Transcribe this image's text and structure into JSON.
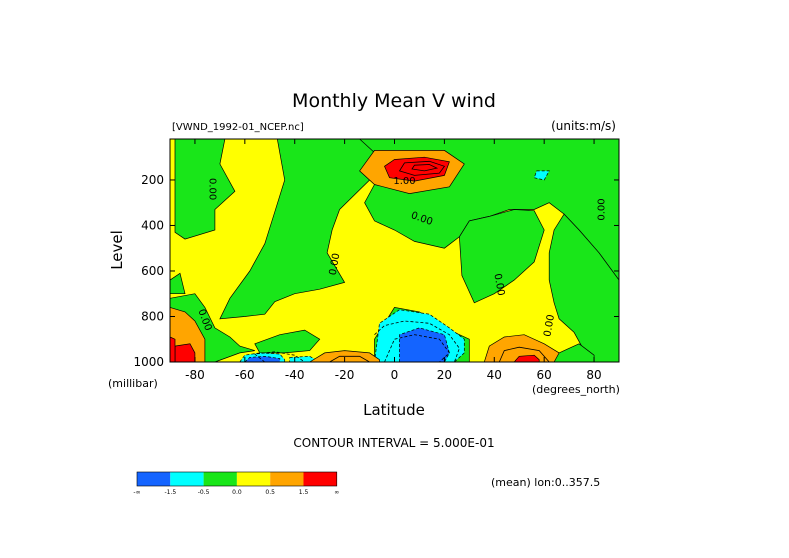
{
  "chart_data": {
    "type": "contour",
    "title": "Monthly Mean V wind",
    "dataset_label": "[VWND_1992-01_NCEP.nc]",
    "units_label": "(units:m/s)",
    "xlabel": "Latitude",
    "x_units": "(degrees_north)",
    "ylabel": "Level",
    "y_units": "(millibar)",
    "xlim": [
      -90,
      90
    ],
    "ylim": [
      1000,
      20
    ],
    "x_ticks": [
      -80,
      -60,
      -40,
      -20,
      0,
      20,
      40,
      60,
      80
    ],
    "y_ticks": [
      200,
      400,
      600,
      800,
      1000
    ],
    "contour_interval_text": "CONTOUR INTERVAL = 5.000E-01",
    "mean_note": "(mean) lon:0..357.5",
    "colorbar": {
      "colors": [
        "#1464ff",
        "#00ffff",
        "#19e619",
        "#ffff00",
        "#ffa500",
        "#ff0000"
      ],
      "labels": [
        "-∞",
        "-1.5",
        "-0.5",
        "0.0",
        "0.5",
        "1.5",
        "∞"
      ]
    },
    "contour_labels": [
      {
        "text": "0.00",
        "lat": -73,
        "lev": 240,
        "rot": 90
      },
      {
        "text": "1.00",
        "lat": 4,
        "lev": 205,
        "rot": 0
      },
      {
        "text": "0.00",
        "lat": 11,
        "lev": 370,
        "rot": 20
      },
      {
        "text": "0.00",
        "lat": -24,
        "lev": 570,
        "rot": -80
      },
      {
        "text": "0.00",
        "lat": 42,
        "lev": 660,
        "rot": 80
      },
      {
        "text": "0.00",
        "lat": -76,
        "lev": 815,
        "rot": 70
      },
      {
        "text": "0.00",
        "lat": 62,
        "lev": 840,
        "rot": -80
      },
      {
        "text": "0.00",
        "lat": 83,
        "lev": 330,
        "rot": -90
      }
    ],
    "regions": {
      "green": [
        [
          [
            -76,
            20
          ],
          [
            -68,
            20
          ],
          [
            -70,
            130
          ],
          [
            -64,
            250
          ],
          [
            -72,
            330
          ],
          [
            -72,
            420
          ],
          [
            -84,
            460
          ],
          [
            -88,
            430
          ],
          [
            -88,
            20
          ]
        ],
        [
          [
            -47,
            20
          ],
          [
            -14,
            20
          ],
          [
            -4,
            100
          ],
          [
            -10,
            200
          ],
          [
            -22,
            330
          ],
          [
            -25,
            420
          ],
          [
            -27,
            520
          ],
          [
            -20,
            650
          ],
          [
            -30,
            680
          ],
          [
            -40,
            700
          ],
          [
            -48,
            735
          ],
          [
            -52,
            790
          ],
          [
            -60,
            800
          ],
          [
            -70,
            810
          ],
          [
            -66,
            720
          ],
          [
            -58,
            600
          ],
          [
            -52,
            480
          ],
          [
            -48,
            340
          ],
          [
            -44,
            200
          ]
        ],
        [
          [
            -14,
            20
          ],
          [
            90,
            20
          ],
          [
            90,
            640
          ],
          [
            82,
            520
          ],
          [
            74,
            420
          ],
          [
            68,
            350
          ],
          [
            62,
            300
          ],
          [
            56,
            330
          ],
          [
            46,
            330
          ],
          [
            38,
            360
          ],
          [
            30,
            380
          ],
          [
            26,
            450
          ],
          [
            20,
            500
          ],
          [
            8,
            470
          ],
          [
            0,
            420
          ],
          [
            -8,
            380
          ],
          [
            -12,
            300
          ],
          [
            -8,
            220
          ],
          [
            -4,
            120
          ]
        ],
        [
          [
            30,
            380
          ],
          [
            38,
            360
          ],
          [
            48,
            330
          ],
          [
            56,
            335
          ],
          [
            60,
            420
          ],
          [
            56,
            560
          ],
          [
            48,
            640
          ],
          [
            40,
            700
          ],
          [
            32,
            740
          ],
          [
            27,
            620
          ],
          [
            26,
            450
          ]
        ],
        [
          [
            68,
            350
          ],
          [
            74,
            420
          ],
          [
            82,
            520
          ],
          [
            90,
            640
          ],
          [
            90,
            1000
          ],
          [
            80,
            1000
          ],
          [
            76,
            950
          ],
          [
            72,
            870
          ],
          [
            66,
            810
          ],
          [
            64,
            740
          ],
          [
            62,
            640
          ],
          [
            62,
            520
          ],
          [
            64,
            420
          ]
        ],
        [
          [
            -90,
            720
          ],
          [
            -80,
            700
          ],
          [
            -76,
            760
          ],
          [
            -72,
            850
          ],
          [
            -66,
            890
          ],
          [
            -62,
            930
          ],
          [
            -56,
            950
          ],
          [
            -62,
            960
          ],
          [
            -72,
            1000
          ],
          [
            -84,
            1000
          ],
          [
            -90,
            960
          ]
        ],
        [
          [
            -56,
            920
          ],
          [
            -46,
            880
          ],
          [
            -36,
            860
          ],
          [
            -30,
            900
          ],
          [
            -34,
            950
          ],
          [
            -44,
            960
          ],
          [
            -54,
            960
          ]
        ],
        [
          [
            -8,
            900
          ],
          [
            0,
            760
          ],
          [
            10,
            780
          ],
          [
            22,
            860
          ],
          [
            30,
            900
          ],
          [
            30,
            1000
          ],
          [
            22,
            1000
          ],
          [
            10,
            990
          ],
          [
            -2,
            1000
          ],
          [
            -8,
            980
          ]
        ],
        [
          [
            48,
            1000
          ],
          [
            52,
            980
          ],
          [
            58,
            990
          ],
          [
            60,
            1000
          ]
        ],
        [
          [
            62,
            1000
          ],
          [
            62,
            990
          ],
          [
            66,
            960
          ],
          [
            70,
            940
          ],
          [
            74,
            920
          ],
          [
            80,
            970
          ],
          [
            80,
            1000
          ]
        ],
        [
          [
            -90,
            640
          ],
          [
            -86,
            610
          ],
          [
            -84,
            700
          ],
          [
            -90,
            700
          ]
        ]
      ],
      "cyan": [
        [
          [
            -8,
            1000
          ],
          [
            -6,
            830
          ],
          [
            2,
            770
          ],
          [
            14,
            790
          ],
          [
            22,
            850
          ],
          [
            28,
            900
          ],
          [
            28,
            960
          ],
          [
            24,
            1000
          ]
        ],
        [
          [
            -62,
            1000
          ],
          [
            -60,
            970
          ],
          [
            -54,
            960
          ],
          [
            -46,
            965
          ],
          [
            -44,
            990
          ],
          [
            -44,
            1000
          ]
        ],
        [
          [
            57,
            160
          ],
          [
            62,
            160
          ],
          [
            60,
            200
          ],
          [
            56,
            190
          ]
        ],
        [
          [
            -42,
            980
          ],
          [
            -34,
            975
          ],
          [
            -30,
            1000
          ],
          [
            -42,
            1000
          ]
        ]
      ],
      "blue": [
        [
          [
            2,
            1000
          ],
          [
            2,
            880
          ],
          [
            10,
            850
          ],
          [
            20,
            880
          ],
          [
            22,
            960
          ],
          [
            20,
            1000
          ]
        ],
        [
          [
            -60,
            1000
          ],
          [
            -58,
            980
          ],
          [
            -52,
            975
          ],
          [
            -46,
            985
          ],
          [
            -46,
            1000
          ]
        ]
      ],
      "orange": [
        [
          [
            -8,
            70
          ],
          [
            20,
            70
          ],
          [
            28,
            130
          ],
          [
            22,
            230
          ],
          [
            6,
            260
          ],
          [
            -8,
            220
          ],
          [
            -14,
            160
          ]
        ],
        [
          [
            36,
            1000
          ],
          [
            38,
            930
          ],
          [
            44,
            890
          ],
          [
            52,
            880
          ],
          [
            60,
            920
          ],
          [
            66,
            960
          ],
          [
            64,
            1000
          ]
        ],
        [
          [
            -34,
            1000
          ],
          [
            -28,
            960
          ],
          [
            -20,
            950
          ],
          [
            -10,
            960
          ],
          [
            -6,
            990
          ],
          [
            -6,
            1000
          ]
        ],
        [
          [
            -90,
            760
          ],
          [
            -84,
            780
          ],
          [
            -80,
            820
          ],
          [
            -76,
            900
          ],
          [
            -76,
            1000
          ],
          [
            -90,
            1000
          ]
        ]
      ],
      "red": [
        [
          [
            0,
            110
          ],
          [
            12,
            100
          ],
          [
            22,
            120
          ],
          [
            20,
            180
          ],
          [
            8,
            205
          ],
          [
            -2,
            190
          ],
          [
            -4,
            140
          ]
        ],
        [
          [
            48,
            1000
          ],
          [
            50,
            975
          ],
          [
            56,
            970
          ],
          [
            58,
            990
          ],
          [
            58,
            1000
          ]
        ],
        [
          [
            -88,
            1000
          ],
          [
            -88,
            930
          ],
          [
            -82,
            920
          ],
          [
            -80,
            960
          ],
          [
            -80,
            1000
          ]
        ],
        [
          [
            -90,
            890
          ],
          [
            -88,
            900
          ],
          [
            -88,
            1000
          ],
          [
            -90,
            1000
          ]
        ]
      ]
    },
    "dashed_contours": [
      [
        [
          -8,
          880
        ],
        [
          -4,
          840
        ],
        [
          4,
          820
        ],
        [
          14,
          830
        ],
        [
          22,
          880
        ],
        [
          26,
          940
        ],
        [
          24,
          1000
        ]
      ],
      [
        [
          -52,
          1000
        ],
        [
          -56,
          965
        ],
        [
          -48,
          955
        ],
        [
          -40,
          970
        ],
        [
          -36,
          1000
        ]
      ],
      [
        [
          -4,
          1000
        ],
        [
          0,
          900
        ],
        [
          8,
          880
        ],
        [
          18,
          900
        ],
        [
          22,
          960
        ],
        [
          18,
          1000
        ]
      ]
    ],
    "solid_contours": [
      [
        [
          4,
          125
        ],
        [
          14,
          118
        ],
        [
          20,
          140
        ],
        [
          18,
          170
        ],
        [
          8,
          180
        ],
        [
          2,
          160
        ]
      ],
      [
        [
          8,
          135
        ],
        [
          14,
          132
        ],
        [
          17,
          148
        ],
        [
          12,
          160
        ],
        [
          7,
          152
        ]
      ],
      [
        [
          42,
          1000
        ],
        [
          44,
          950
        ],
        [
          50,
          935
        ],
        [
          58,
          950
        ],
        [
          62,
          1000
        ]
      ],
      [
        [
          -26,
          1000
        ],
        [
          -22,
          975
        ],
        [
          -14,
          975
        ],
        [
          -10,
          1000
        ]
      ]
    ]
  }
}
